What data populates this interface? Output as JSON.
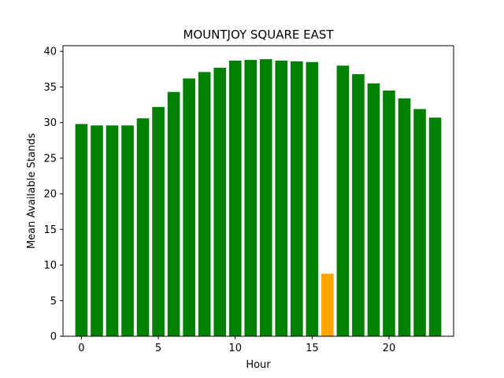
{
  "chart_data": {
    "type": "bar",
    "title": "MOUNTJOY SQUARE EAST",
    "xlabel": "Hour",
    "ylabel": "Mean Available Stands",
    "x": [
      0,
      1,
      2,
      3,
      4,
      5,
      6,
      7,
      8,
      9,
      10,
      11,
      12,
      13,
      14,
      15,
      16,
      17,
      18,
      19,
      20,
      21,
      22,
      23
    ],
    "values": [
      29.8,
      29.6,
      29.6,
      29.6,
      30.6,
      32.2,
      34.3,
      36.2,
      37.1,
      37.7,
      38.7,
      38.8,
      38.9,
      38.7,
      38.6,
      38.5,
      8.8,
      38.0,
      36.8,
      35.5,
      34.5,
      33.4,
      31.9,
      30.7
    ],
    "bar_colors": [
      "#008000",
      "#008000",
      "#008000",
      "#008000",
      "#008000",
      "#008000",
      "#008000",
      "#008000",
      "#008000",
      "#008000",
      "#008000",
      "#008000",
      "#008000",
      "#008000",
      "#008000",
      "#008000",
      "#FFA500",
      "#008000",
      "#008000",
      "#008000",
      "#008000",
      "#008000",
      "#008000",
      "#008000"
    ],
    "xlim": [
      -1.2,
      24.2
    ],
    "ylim": [
      0,
      40.8
    ],
    "xticks": [
      0,
      5,
      10,
      15,
      20
    ],
    "yticks": [
      0,
      5,
      10,
      15,
      20,
      25,
      30,
      35,
      40
    ],
    "grid": false,
    "legend": "none"
  }
}
